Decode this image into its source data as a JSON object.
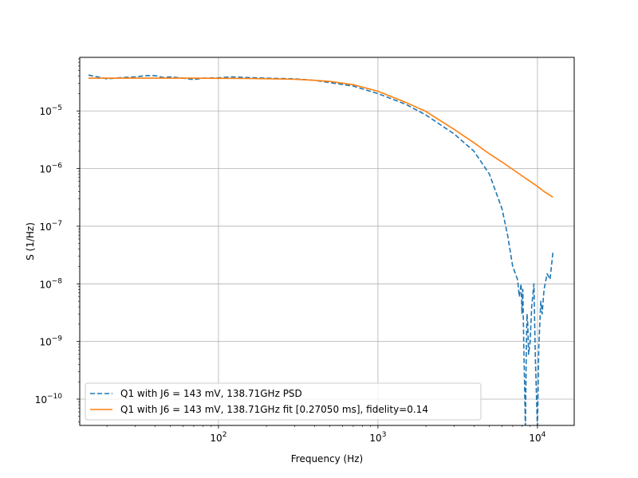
{
  "chart_data": {
    "type": "line",
    "title": "",
    "xlabel": "Frequency (Hz)",
    "ylabel": "S (1/Hz)",
    "xscale": "log",
    "yscale": "log",
    "xlim": [
      13.5,
      17000
    ],
    "ylim": [
      3.5e-11,
      8.5e-05
    ],
    "grid": true,
    "legend_position": "lower-left",
    "x_ticks": [
      {
        "value": 100,
        "base": "10",
        "exp": "2"
      },
      {
        "value": 1000,
        "base": "10",
        "exp": "3"
      },
      {
        "value": 10000,
        "base": "10",
        "exp": "4"
      }
    ],
    "y_ticks": [
      {
        "value": 1e-10,
        "base": "10",
        "exp": "−10"
      },
      {
        "value": 1e-09,
        "base": "10",
        "exp": "−9"
      },
      {
        "value": 1e-08,
        "base": "10",
        "exp": "−8"
      },
      {
        "value": 1e-07,
        "base": "10",
        "exp": "−7"
      },
      {
        "value": 1e-06,
        "base": "10",
        "exp": "−6"
      },
      {
        "value": 1e-05,
        "base": "10",
        "exp": "−5"
      }
    ],
    "series": [
      {
        "name": "Q1 with J6 = 143 mV, 138.71GHz PSD",
        "color": "#1f77b4",
        "style": "dashed",
        "x": [
          15.3,
          20,
          25,
          30,
          35,
          40,
          45,
          50,
          60,
          70,
          80,
          100,
          120,
          150,
          200,
          300,
          400,
          500,
          700,
          1000,
          1500,
          2000,
          3000,
          4000,
          5000,
          6000,
          6500,
          7000,
          7500,
          7700,
          7900,
          8000,
          8100,
          8200,
          8300,
          8400,
          8500,
          8600,
          8700,
          8800,
          9000,
          9200,
          9500,
          9700,
          10000,
          10200,
          10500,
          10700,
          11000,
          11500,
          12000,
          12500
        ],
        "y": [
          4.2e-05,
          3.6e-05,
          3.8e-05,
          3.9e-05,
          4.1e-05,
          4.1e-05,
          3.8e-05,
          3.9e-05,
          3.7e-05,
          3.5e-05,
          3.7e-05,
          3.75e-05,
          3.9e-05,
          3.8e-05,
          3.7e-05,
          3.6e-05,
          3.4e-05,
          3.1e-05,
          2.7e-05,
          2e-05,
          1.3e-05,
          8.5e-06,
          4e-06,
          2e-06,
          8e-07,
          2e-07,
          7e-08,
          2e-08,
          1.2e-08,
          6e-09,
          1e-08,
          3e-09,
          8e-09,
          1e-09,
          2e-10,
          3e-11,
          5e-10,
          3e-09,
          2e-09,
          6e-10,
          1e-09,
          4e-09,
          1e-08,
          5e-10,
          3e-11,
          8e-10,
          5e-09,
          3e-09,
          8e-09,
          1.5e-08,
          1.2e-08,
          3.5e-08
        ]
      },
      {
        "name": "Q1 with J6 = 143 mV, 138.71GHz fit [0.27050 ms], fidelity=0.14",
        "color": "#ff7f0e",
        "style": "solid",
        "x": [
          15.3,
          20,
          30,
          50,
          70,
          100,
          150,
          200,
          300,
          400,
          500,
          700,
          1000,
          1500,
          2000,
          3000,
          4000,
          5000,
          6000,
          7000,
          8000,
          9000,
          10000,
          11000,
          12500
        ],
        "y": [
          3.7e-05,
          3.7e-05,
          3.7e-05,
          3.7e-05,
          3.7e-05,
          3.68e-05,
          3.66e-05,
          3.62e-05,
          3.54e-05,
          3.4e-05,
          3.25e-05,
          2.85e-05,
          2.2e-05,
          1.4e-05,
          9.8e-06,
          4.8e-06,
          2.8e-06,
          1.8e-06,
          1.3e-06,
          9.7e-07,
          7.5e-07,
          6e-07,
          4.9e-07,
          4e-07,
          3.2e-07
        ]
      }
    ]
  }
}
